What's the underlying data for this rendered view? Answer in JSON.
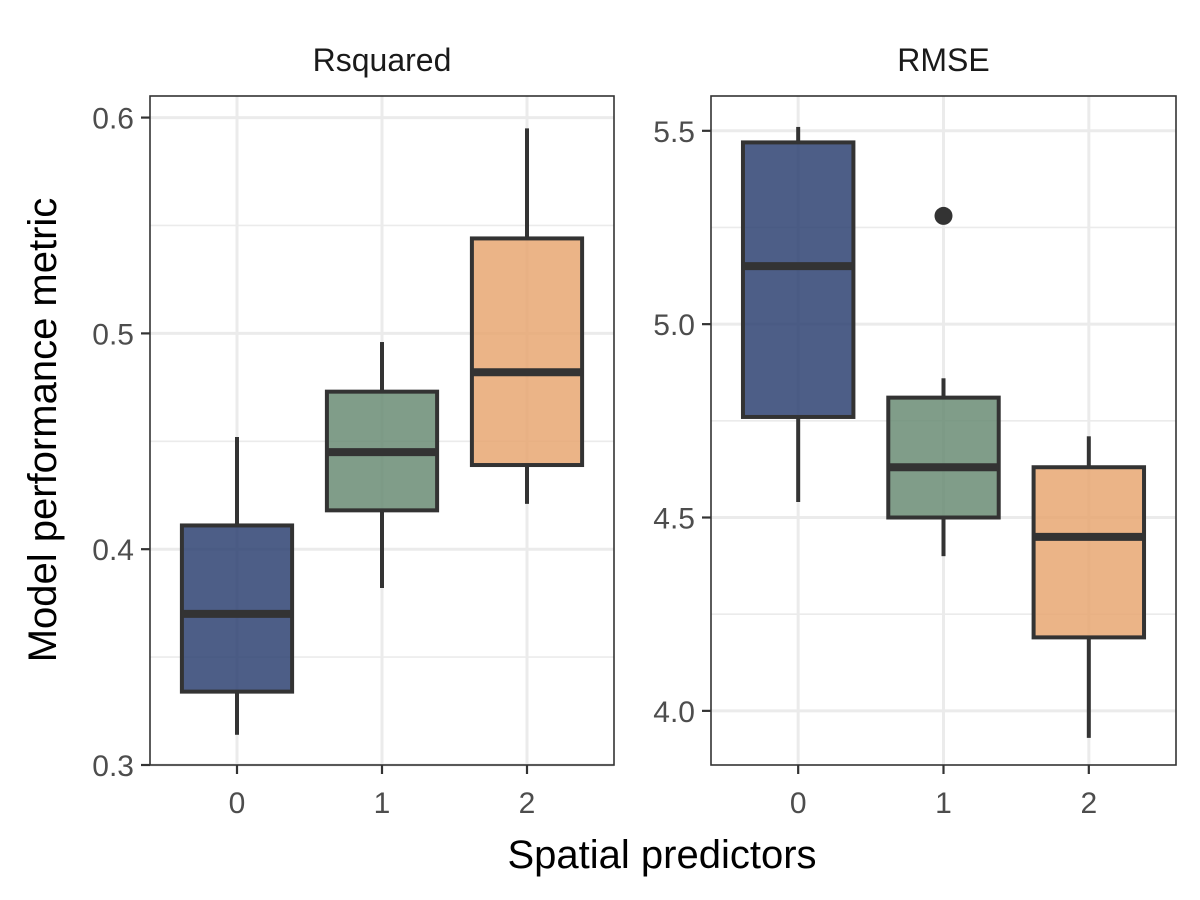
{
  "chart_data": [
    {
      "type": "box",
      "title": "Rsquared",
      "xlabel": "Spatial predictors",
      "ylabel": "Model performance metric",
      "categories": [
        "0",
        "1",
        "2"
      ],
      "ylim": [
        0.3,
        0.61
      ],
      "yticks": [
        0.3,
        0.4,
        0.5,
        0.6
      ],
      "ytick_labels": [
        "0.3",
        "0.4",
        "0.5",
        "0.6"
      ],
      "boxes": [
        {
          "category": "0",
          "min": 0.314,
          "q1": 0.334,
          "median": 0.37,
          "q3": 0.411,
          "max": 0.452,
          "outliers": [],
          "color": "#2E4272"
        },
        {
          "category": "1",
          "min": 0.382,
          "q1": 0.418,
          "median": 0.445,
          "q3": 0.473,
          "max": 0.496,
          "outliers": [],
          "color": "#6A8C74"
        },
        {
          "category": "2",
          "min": 0.421,
          "q1": 0.439,
          "median": 0.482,
          "q3": 0.544,
          "max": 0.595,
          "outliers": [],
          "color": "#E8A772"
        }
      ]
    },
    {
      "type": "box",
      "title": "RMSE",
      "xlabel": "Spatial predictors",
      "ylabel": "Model performance metric",
      "categories": [
        "0",
        "1",
        "2"
      ],
      "ylim": [
        3.86,
        5.59
      ],
      "yticks": [
        4.0,
        4.5,
        5.0,
        5.5
      ],
      "ytick_labels": [
        "4.0",
        "4.5",
        "5.0",
        "5.5"
      ],
      "boxes": [
        {
          "category": "0",
          "min": 4.54,
          "q1": 4.76,
          "median": 5.15,
          "q3": 5.47,
          "max": 5.51,
          "outliers": [],
          "color": "#2E4272"
        },
        {
          "category": "1",
          "min": 4.4,
          "q1": 4.5,
          "median": 4.63,
          "q3": 4.81,
          "max": 4.86,
          "outliers": [
            5.28
          ],
          "color": "#6A8C74"
        },
        {
          "category": "2",
          "min": 3.93,
          "q1": 4.19,
          "median": 4.45,
          "q3": 4.63,
          "max": 4.71,
          "outliers": [],
          "color": "#E8A772"
        }
      ]
    }
  ],
  "labels": {
    "xlabel": "Spatial predictors",
    "ylabel": "Model performance metric"
  }
}
